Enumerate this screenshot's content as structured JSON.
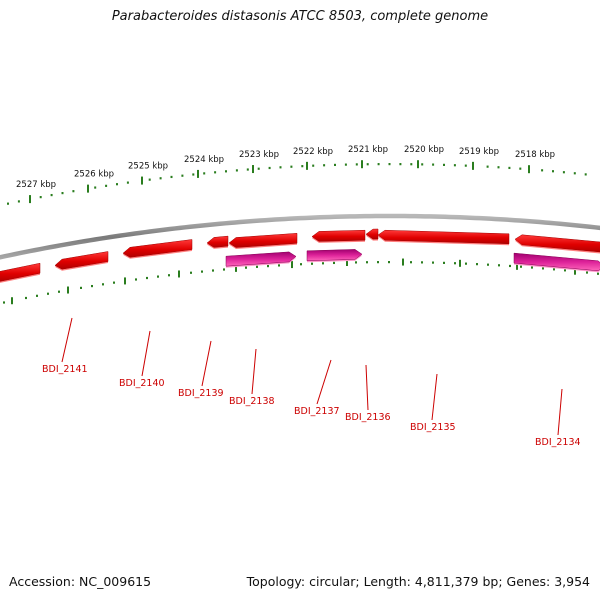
{
  "title": "Parabacteroides distasonis ATCC 8503, complete genome",
  "footer": {
    "accession": "Accession: NC_009615",
    "summary": "Topology: circular; Length: 4,811,379 bp; Genes: 3,954"
  },
  "colors": {
    "forward_gene": "#dd0000",
    "reverse_gene": "#cc1188",
    "backbone": "#888888",
    "tick": "#2a7d1e",
    "label": "#cc0000"
  },
  "ruler_labels": [
    "2527 kbp",
    "2526 kbp",
    "2525 kbp",
    "2524 kbp",
    "2523 kbp",
    "2522 kbp",
    "2521 kbp",
    "2520 kbp",
    "2519 kbp",
    "2518 kbp"
  ],
  "gene_labels": [
    "BDI_2141",
    "BDI_2140",
    "BDI_2139",
    "BDI_2138",
    "BDI_2137",
    "BDI_2136",
    "BDI_2135",
    "BDI_2134"
  ]
}
